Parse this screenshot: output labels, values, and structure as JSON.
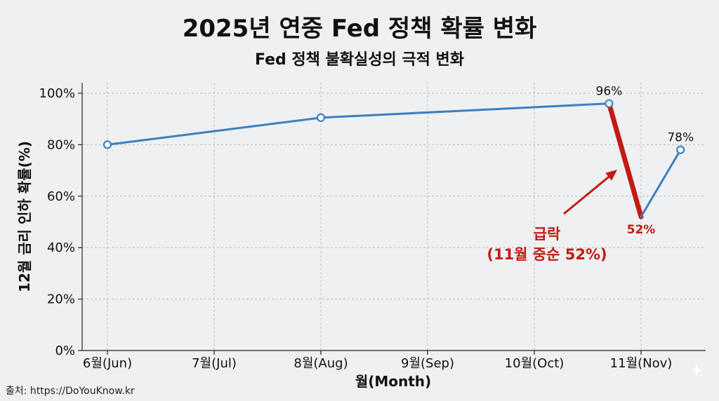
{
  "title": "2025년 연중 Fed 정책 확률 변화",
  "subtitle": "Fed 정책 불확실성의 극적 변화",
  "source": "출처: https://DoYouKnow.kr",
  "colors": {
    "line": "#3d7fc0",
    "drop": "#c41a14",
    "background": "#eef0f2"
  },
  "chart_data": {
    "type": "line",
    "title": "2025년 연중 Fed 정책 확률 변화",
    "subtitle": "Fed 정책 불확실성의 극적 변화",
    "xlabel": "월(Month)",
    "ylabel": "12월 금리 인하 확률(%)",
    "x_ticks": [
      "6월(Jun)",
      "7월(Jul)",
      "8월(Aug)",
      "9월(Sep)",
      "10월(Oct)",
      "11월(Nov)"
    ],
    "y_ticks": [
      "0%",
      "20%",
      "40%",
      "60%",
      "80%",
      "100%"
    ],
    "ylim": [
      0,
      100
    ],
    "xlim": [
      6,
      11.4
    ],
    "grid": true,
    "series": [
      {
        "points": [
          {
            "x": 6.0,
            "y": 80
          },
          {
            "x": 8.0,
            "y": 90.5
          },
          {
            "x": 10.7,
            "y": 96
          },
          {
            "x": 11.0,
            "y": 52
          },
          {
            "x": 11.37,
            "y": 78
          }
        ]
      }
    ],
    "data_labels": [
      {
        "text": "96%",
        "x": 10.7,
        "y": 96
      },
      {
        "text": "52%",
        "x": 11.0,
        "y": 52,
        "highlight": true
      },
      {
        "text": "78%",
        "x": 11.37,
        "y": 78
      }
    ],
    "annotation": {
      "line1": "급락",
      "line2": "(11월 중순 52%)"
    }
  }
}
